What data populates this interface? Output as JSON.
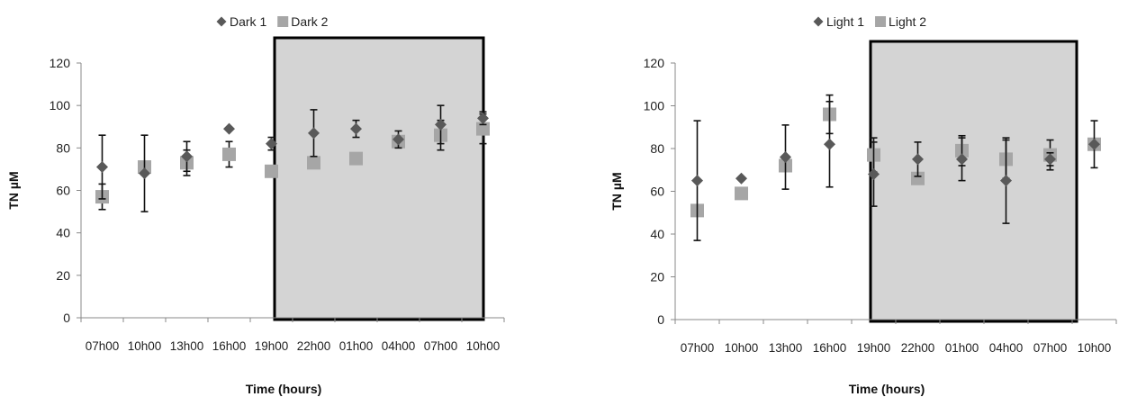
{
  "chart_data": [
    {
      "type": "scatter",
      "categories": [
        "07h00",
        "10h00",
        "13h00",
        "16h00",
        "19h00",
        "22h00",
        "01h00",
        "04h00",
        "07h00",
        "10h00"
      ],
      "xlabel": "Time (hours)",
      "ylabel": "TN µM",
      "ylim": [
        0,
        120
      ],
      "yticks": [
        0,
        20,
        40,
        60,
        80,
        100,
        120
      ],
      "legend_position": "top",
      "shaded_region": [
        4,
        8
      ],
      "grid": false,
      "series": [
        {
          "name": "Dark 1",
          "marker": "diamond",
          "color": "#595959",
          "values": [
            71,
            68,
            76,
            89,
            82,
            87,
            89,
            84,
            91,
            94
          ],
          "errors": [
            15,
            18,
            7,
            null,
            3,
            11,
            4,
            4,
            9,
            3
          ]
        },
        {
          "name": "Dark 2",
          "marker": "square",
          "color": "#a6a6a6",
          "values": [
            57,
            71,
            73,
            77,
            69,
            73,
            75,
            83,
            86,
            89
          ],
          "errors": [
            6,
            null,
            6,
            6,
            null,
            null,
            null,
            null,
            7,
            7
          ]
        }
      ]
    },
    {
      "type": "scatter",
      "categories": [
        "07h00",
        "10h00",
        "13h00",
        "16h00",
        "19h00",
        "22h00",
        "01h00",
        "04h00",
        "07h00",
        "10h00"
      ],
      "xlabel": "Time (hours)",
      "ylabel": "TN µM",
      "ylim": [
        0,
        120
      ],
      "yticks": [
        0,
        20,
        40,
        60,
        80,
        100,
        120
      ],
      "legend_position": "top",
      "shaded_region": [
        4,
        8
      ],
      "grid": false,
      "series": [
        {
          "name": "Light 1",
          "marker": "diamond",
          "color": "#595959",
          "values": [
            65,
            66,
            76,
            82,
            68,
            75,
            75,
            65,
            75,
            82
          ],
          "errors": [
            28,
            null,
            15,
            20,
            15,
            8,
            10,
            20,
            3,
            11
          ]
        },
        {
          "name": "Light 2",
          "marker": "square",
          "color": "#a6a6a6",
          "values": [
            51,
            59,
            72,
            96,
            77,
            66,
            79,
            75,
            77,
            82
          ],
          "errors": [
            null,
            null,
            null,
            9,
            8,
            null,
            7,
            9,
            7,
            null
          ]
        }
      ]
    }
  ]
}
